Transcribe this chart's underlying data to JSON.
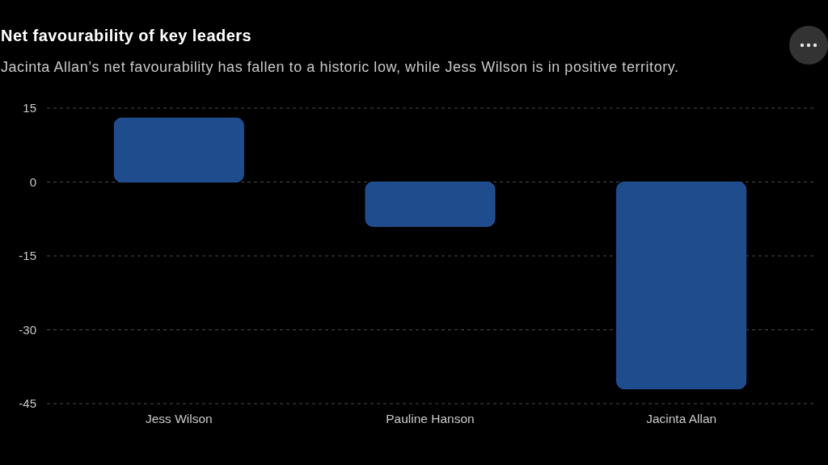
{
  "chart_data": {
    "type": "bar",
    "title": "Net favourability of key leaders",
    "subtitle": "Jacinta Allan’s net favourability has fallen to a historic low, while Jess Wilson is in positive territory.",
    "categories": [
      "Jess Wilson",
      "Pauline Hanson",
      "Jacinta Allan"
    ],
    "values": [
      13,
      -9,
      -42
    ],
    "color": "#1f4c8c",
    "ylim": [
      -45,
      15
    ],
    "yticks": [
      -45,
      -30,
      -15,
      0,
      15
    ],
    "grid": "y"
  }
}
